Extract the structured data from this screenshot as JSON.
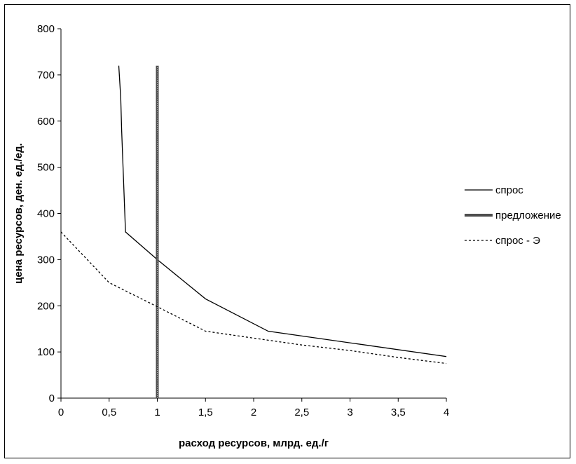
{
  "chart_data": {
    "type": "line",
    "xlabel": "расход ресурсов, млрд. ед./г",
    "ylabel": "цена ресурсов, ден. ед./ед.",
    "xlim": [
      0,
      4
    ],
    "ylim": [
      0,
      800
    ],
    "x_ticks": [
      0,
      0.5,
      1,
      1.5,
      2,
      2.5,
      3,
      3.5,
      4
    ],
    "x_tick_labels": [
      "0",
      "0,5",
      "1",
      "1,5",
      "2",
      "2,5",
      "3",
      "3,5",
      "4"
    ],
    "y_ticks": [
      0,
      100,
      200,
      300,
      400,
      500,
      600,
      700,
      800
    ],
    "y_tick_labels": [
      "0",
      "100",
      "200",
      "300",
      "400",
      "500",
      "600",
      "700",
      "800"
    ],
    "grid": false,
    "legend_position": "right",
    "series": [
      {
        "name": "спрос",
        "style": "solid",
        "color": "#000000",
        "x": [
          0.6,
          0.62,
          0.63,
          0.67,
          1,
          1.5,
          2.15,
          4
        ],
        "y": [
          720,
          650,
          580,
          360,
          300,
          215,
          145,
          90
        ]
      },
      {
        "name": "предложение",
        "style": "thick",
        "color": "#555555",
        "x": [
          1,
          1
        ],
        "y": [
          0,
          720
        ]
      },
      {
        "name": "спрос - Э",
        "style": "dotted",
        "color": "#000000",
        "x": [
          0,
          0.5,
          1,
          1.5,
          2,
          2.5,
          3,
          3.5,
          4
        ],
        "y": [
          360,
          250,
          198,
          145,
          130,
          115,
          103,
          88,
          75
        ]
      }
    ]
  }
}
